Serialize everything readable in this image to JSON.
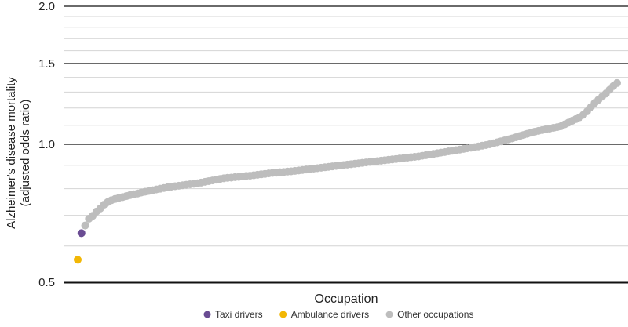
{
  "chart_data": {
    "type": "scatter",
    "title": "",
    "xlabel": "Occupation",
    "ylabel_lines": [
      "Alzheimer's disease mortality",
      "(adjusted odds ratio)"
    ],
    "y_scale": "log",
    "ylim": [
      0.5,
      2.0
    ],
    "y_major_ticks": [
      0.5,
      1.0,
      1.5,
      2.0
    ],
    "y_tick_labels": [
      "0.5",
      "1.0",
      "1.5",
      "2.0"
    ],
    "y_minor_gridlines": [
      0.6,
      0.7,
      0.8,
      0.9,
      1.1,
      1.2,
      1.3,
      1.4,
      1.6,
      1.7,
      1.8,
      1.9
    ],
    "grid": true,
    "legend_position": "bottom-center",
    "series": [
      {
        "name": "Taxi drivers",
        "color": "#6a4c93",
        "values": [
          0.64
        ]
      },
      {
        "name": "Ambulance drivers",
        "color": "#f2b705",
        "values": [
          0.56
        ]
      },
      {
        "name": "Other occupations",
        "color": "#bdbdbd",
        "values": [
          0.665,
          0.688,
          0.698,
          0.713,
          0.724,
          0.738,
          0.748,
          0.755,
          0.76,
          0.764,
          0.767,
          0.771,
          0.775,
          0.778,
          0.781,
          0.785,
          0.788,
          0.791,
          0.794,
          0.797,
          0.8,
          0.803,
          0.806,
          0.808,
          0.81,
          0.812,
          0.814,
          0.816,
          0.818,
          0.82,
          0.822,
          0.825,
          0.828,
          0.831,
          0.834,
          0.837,
          0.84,
          0.843,
          0.845,
          0.846,
          0.848,
          0.849,
          0.851,
          0.853,
          0.854,
          0.856,
          0.858,
          0.86,
          0.862,
          0.864,
          0.866,
          0.867,
          0.869,
          0.87,
          0.872,
          0.873,
          0.875,
          0.877,
          0.879,
          0.881,
          0.883,
          0.885,
          0.887,
          0.889,
          0.891,
          0.893,
          0.895,
          0.897,
          0.899,
          0.901,
          0.903,
          0.905,
          0.907,
          0.909,
          0.911,
          0.913,
          0.915,
          0.917,
          0.919,
          0.921,
          0.923,
          0.925,
          0.927,
          0.929,
          0.931,
          0.933,
          0.935,
          0.937,
          0.939,
          0.941,
          0.944,
          0.947,
          0.95,
          0.953,
          0.956,
          0.959,
          0.962,
          0.965,
          0.968,
          0.971,
          0.974,
          0.977,
          0.98,
          0.983,
          0.986,
          0.989,
          0.993,
          0.996,
          1.0,
          1.005,
          1.01,
          1.015,
          1.02,
          1.025,
          1.03,
          1.036,
          1.042,
          1.048,
          1.054,
          1.06,
          1.065,
          1.07,
          1.074,
          1.078,
          1.082,
          1.086,
          1.09,
          1.095,
          1.105,
          1.115,
          1.125,
          1.135,
          1.145,
          1.16,
          1.18,
          1.205,
          1.23,
          1.25,
          1.27,
          1.29,
          1.315,
          1.34,
          1.36
        ]
      }
    ],
    "legend": [
      {
        "label": "Taxi drivers",
        "color": "#6a4c93"
      },
      {
        "label": "Ambulance drivers",
        "color": "#f2b705"
      },
      {
        "label": "Other occupations",
        "color": "#bdbdbd"
      }
    ]
  }
}
